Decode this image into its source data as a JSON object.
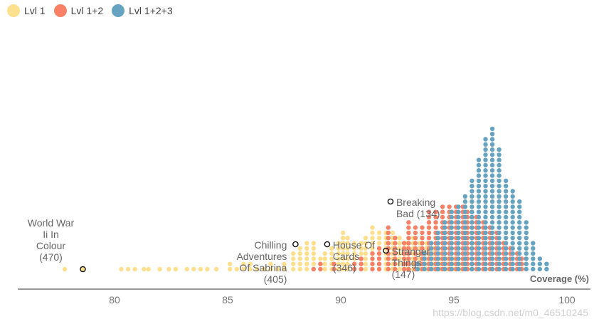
{
  "legend": [
    {
      "label": "Lvl 1",
      "color": "#fde08f"
    },
    {
      "label": "Lvl 1+2",
      "color": "#f78166"
    },
    {
      "label": "Lvl 1+2+3",
      "color": "#66a3c1"
    }
  ],
  "watermark": "https://blog.csdn.net/m0_46510245",
  "chart_data": {
    "type": "scatter",
    "subtype": "beeswarm",
    "title": "",
    "xlabel": "Coverage (%)",
    "ylabel": "",
    "xlim": [
      75.5,
      101.0
    ],
    "xticks": [
      80,
      85,
      90,
      95,
      100
    ],
    "grid": false,
    "legend_position": "top-left",
    "series": [
      {
        "name": "Lvl 1",
        "color": "#fde08f",
        "columns": [
          [
            77.8,
            1
          ],
          [
            78.6,
            1
          ],
          [
            80.3,
            1
          ],
          [
            80.6,
            1
          ],
          [
            80.9,
            1
          ],
          [
            81.3,
            1
          ],
          [
            81.5,
            1
          ],
          [
            82.0,
            1
          ],
          [
            82.4,
            1
          ],
          [
            82.7,
            1
          ],
          [
            83.2,
            1
          ],
          [
            83.5,
            1
          ],
          [
            83.8,
            1
          ],
          [
            84.1,
            1
          ],
          [
            84.5,
            1
          ],
          [
            85.1,
            2
          ],
          [
            85.4,
            1
          ],
          [
            85.7,
            2
          ],
          [
            86.0,
            2
          ],
          [
            86.3,
            1
          ],
          [
            86.6,
            1
          ],
          [
            86.9,
            2
          ],
          [
            87.2,
            1
          ],
          [
            87.5,
            2
          ],
          [
            87.9,
            4
          ],
          [
            88.2,
            5
          ],
          [
            88.5,
            6
          ],
          [
            88.8,
            6
          ],
          [
            89.1,
            3
          ],
          [
            89.3,
            4
          ],
          [
            89.6,
            5
          ],
          [
            89.9,
            6
          ],
          [
            90.1,
            8
          ],
          [
            90.3,
            7
          ],
          [
            90.6,
            6
          ],
          [
            90.9,
            6
          ],
          [
            91.1,
            7
          ],
          [
            91.4,
            9
          ],
          [
            91.7,
            8
          ],
          [
            92.0,
            8
          ],
          [
            92.3,
            8
          ],
          [
            92.6,
            7
          ],
          [
            92.9,
            6
          ],
          [
            93.2,
            7
          ],
          [
            93.5,
            6
          ],
          [
            93.8,
            6
          ],
          [
            94.1,
            5
          ],
          [
            94.4,
            4
          ],
          [
            94.7,
            3
          ],
          [
            95.0,
            3
          ],
          [
            95.3,
            2
          ],
          [
            95.6,
            1
          ]
        ]
      },
      {
        "name": "Lvl 1+2",
        "color": "#f78166",
        "columns": [
          [
            88.8,
            1
          ],
          [
            89.1,
            2
          ],
          [
            89.7,
            2
          ],
          [
            90.6,
            2
          ],
          [
            90.9,
            3
          ],
          [
            91.4,
            4
          ],
          [
            91.7,
            5
          ],
          [
            92.1,
            9
          ],
          [
            92.4,
            7
          ],
          [
            92.8,
            6
          ],
          [
            93.0,
            10
          ],
          [
            93.3,
            9
          ],
          [
            93.6,
            9
          ],
          [
            93.9,
            12
          ],
          [
            94.2,
            12
          ],
          [
            94.5,
            13
          ],
          [
            94.8,
            13
          ],
          [
            95.1,
            13
          ],
          [
            95.4,
            13
          ],
          [
            95.6,
            12
          ],
          [
            95.8,
            11
          ],
          [
            96.0,
            11
          ],
          [
            96.3,
            10
          ],
          [
            96.6,
            9
          ],
          [
            96.9,
            8
          ],
          [
            97.2,
            6
          ],
          [
            97.5,
            5
          ],
          [
            97.8,
            4
          ],
          [
            98.0,
            3
          ]
        ]
      },
      {
        "name": "Lvl 1+2+3",
        "color": "#66a3c1",
        "columns": [
          [
            93.4,
            2
          ],
          [
            93.7,
            4
          ],
          [
            94.0,
            6
          ],
          [
            94.3,
            8
          ],
          [
            94.6,
            10
          ],
          [
            94.9,
            12
          ],
          [
            95.2,
            13
          ],
          [
            95.5,
            15
          ],
          [
            95.8,
            18
          ],
          [
            96.1,
            22
          ],
          [
            96.4,
            26
          ],
          [
            96.7,
            28
          ],
          [
            97.0,
            24
          ],
          [
            97.3,
            18
          ],
          [
            97.6,
            16
          ],
          [
            97.9,
            14
          ],
          [
            98.2,
            10
          ],
          [
            98.5,
            6
          ],
          [
            98.8,
            3
          ],
          [
            99.1,
            2
          ]
        ]
      }
    ],
    "annotations": [
      {
        "label": "World War Ii In Colour (470)",
        "lines": [
          "World War",
          "Ii In",
          "Colour",
          "(470)"
        ],
        "x": 78.6
      },
      {
        "label": "Chilling Adventures Of Sabrina (405)",
        "lines": [
          "Chilling",
          "Adventures",
          "Of Sabrina",
          "(405)"
        ],
        "x": 88.0
      },
      {
        "label": "House Of Cards (346)",
        "lines": [
          "House Of",
          "Cards",
          "(346)"
        ],
        "x": 89.4
      },
      {
        "label": "Breaking Bad (134)",
        "lines": [
          "Breaking",
          "Bad (134)"
        ],
        "x": 92.2
      },
      {
        "label": "Stranger Things (147)",
        "lines": [
          "Stranger",
          "Things",
          "(147)"
        ],
        "x": 92.0
      }
    ]
  }
}
